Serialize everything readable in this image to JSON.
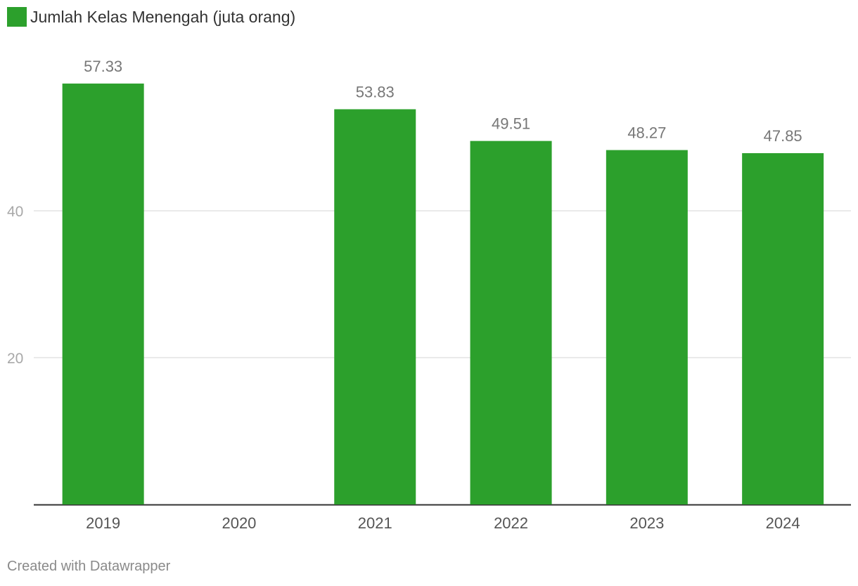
{
  "legend": {
    "label": "Jumlah Kelas Menengah (juta orang)",
    "color": "#2ca02c"
  },
  "credit": "Created with Datawrapper",
  "colors": {
    "bar": "#2ca02c",
    "gridline": "#e3e3e3",
    "baseline": "#333333",
    "tick_label": "#a8a8a8",
    "category_label": "#555555",
    "value_label": "#777777"
  },
  "chart_data": {
    "type": "bar",
    "categories": [
      "2019",
      "2020",
      "2021",
      "2022",
      "2023",
      "2024"
    ],
    "series": [
      {
        "name": "Jumlah Kelas Menengah (juta orang)",
        "values": [
          57.33,
          null,
          53.83,
          49.51,
          48.27,
          47.85
        ],
        "value_labels": [
          "57.33",
          "",
          "53.83",
          "49.51",
          "48.27",
          "47.85"
        ]
      }
    ],
    "yticks": [
      20,
      40
    ],
    "ytick_labels": [
      "20",
      "40"
    ],
    "ylim": [
      0,
      60
    ],
    "grid": true,
    "legend_position": "top-left"
  }
}
